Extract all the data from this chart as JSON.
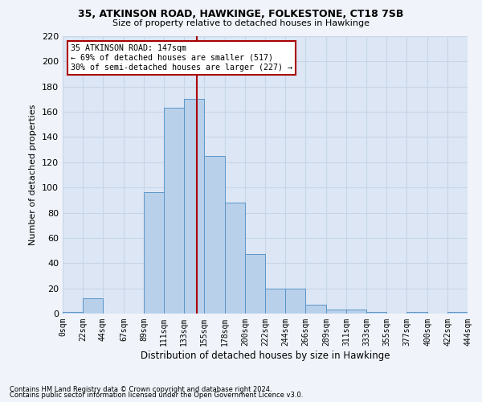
{
  "title1": "35, ATKINSON ROAD, HAWKINGE, FOLKESTONE, CT18 7SB",
  "title2": "Size of property relative to detached houses in Hawkinge",
  "xlabel": "Distribution of detached houses by size in Hawkinge",
  "ylabel": "Number of detached properties",
  "footnote1": "Contains HM Land Registry data © Crown copyright and database right 2024.",
  "footnote2": "Contains public sector information licensed under the Open Government Licence v3.0.",
  "annotation_line1": "35 ATKINSON ROAD: 147sqm",
  "annotation_line2": "← 69% of detached houses are smaller (517)",
  "annotation_line3": "30% of semi-detached houses are larger (227) →",
  "bin_edges": [
    0,
    22,
    44,
    67,
    89,
    111,
    133,
    155,
    178,
    200,
    222,
    244,
    266,
    289,
    311,
    333,
    355,
    377,
    400,
    422,
    444
  ],
  "bin_counts": [
    1,
    12,
    0,
    0,
    96,
    163,
    170,
    125,
    88,
    47,
    20,
    20,
    7,
    3,
    3,
    1,
    0,
    1,
    0,
    1
  ],
  "bar_color": "#b8d0ea",
  "bar_edge_color": "#5b96c8",
  "vline_color": "#aa0000",
  "vline_x": 147,
  "annotation_box_color": "#ffffff",
  "annotation_box_edge": "#aa0000",
  "background_color": "#dce6f5",
  "grid_color": "#c8d4e8",
  "ylim": [
    0,
    220
  ],
  "yticks": [
    0,
    20,
    40,
    60,
    80,
    100,
    120,
    140,
    160,
    180,
    200,
    220
  ],
  "tick_labels": [
    "0sqm",
    "22sqm",
    "44sqm",
    "67sqm",
    "89sqm",
    "111sqm",
    "133sqm",
    "155sqm",
    "178sqm",
    "200sqm",
    "222sqm",
    "244sqm",
    "266sqm",
    "289sqm",
    "311sqm",
    "333sqm",
    "355sqm",
    "377sqm",
    "400sqm",
    "422sqm",
    "444sqm"
  ],
  "fig_width": 6.0,
  "fig_height": 5.0,
  "fig_dpi": 100
}
